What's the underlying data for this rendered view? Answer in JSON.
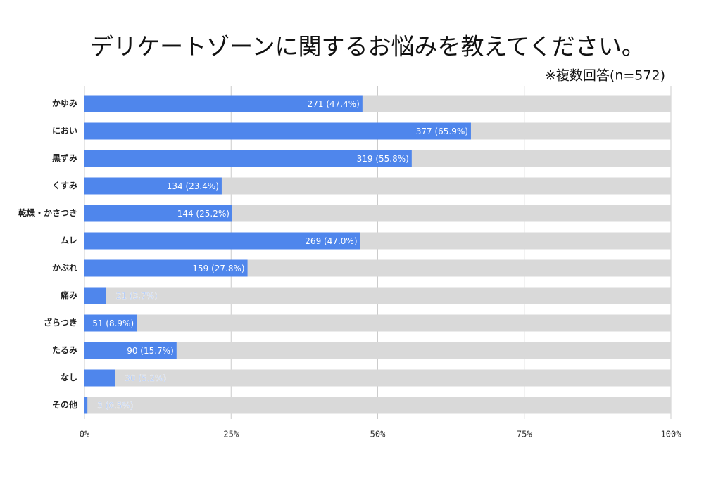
{
  "chart_data": {
    "type": "bar",
    "orientation": "horizontal",
    "title": "デリケートゾーンに関するお悩みを教えてください。",
    "subtitle": "※複数回答(n=572)",
    "categories": [
      "かゆみ",
      "におい",
      "黒ずみ",
      "くすみ",
      "乾燥・かさつき",
      "ムレ",
      "かぶれ",
      "痛み",
      "ざらつき",
      "たるみ",
      "なし",
      "その他"
    ],
    "values": [
      47.4,
      65.9,
      55.8,
      23.4,
      25.2,
      47.0,
      27.8,
      3.7,
      8.9,
      15.7,
      5.2,
      0.5
    ],
    "value_labels": [
      "271 (47.4%)",
      "377 (65.9%)",
      "319 (55.8%)",
      "134 (23.4%)",
      "144 (25.2%)",
      "269 (47.0%)",
      "159 (27.8%)",
      "21 (3.7%)",
      "51 (8.9%)",
      "90 (15.7%)",
      "30 (5.2%)",
      "3 (0.5%)"
    ],
    "color": "#4f86ec",
    "xlim": [
      0,
      100
    ],
    "xticks": [
      {
        "value": 0,
        "label": "0%"
      },
      {
        "value": 25,
        "label": "25%"
      },
      {
        "value": 50,
        "label": "50%"
      },
      {
        "value": 75,
        "label": "75%"
      },
      {
        "value": 100,
        "label": "100%"
      }
    ],
    "grid": true
  }
}
